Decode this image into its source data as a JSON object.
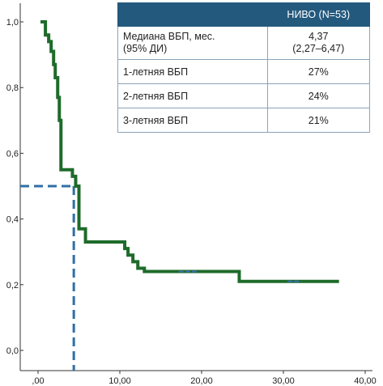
{
  "chart_data": {
    "type": "line",
    "title": "",
    "xlabel": "",
    "ylabel": "",
    "xlim": [
      0,
      40
    ],
    "ylim": [
      0,
      1.0
    ],
    "x_ticks": [
      ",00",
      "10,00",
      "20,00",
      "30,00",
      "40,00"
    ],
    "y_ticks": [
      "0,0",
      "0,2",
      "0,4",
      "0,6",
      "0,8",
      "1,0"
    ],
    "series": [
      {
        "name": "НИВО (N=53)",
        "color": "#1e6b2a",
        "step": true,
        "x": [
          0.3,
          0.9,
          1.3,
          1.6,
          1.9,
          2.1,
          2.4,
          2.6,
          2.8,
          3.4,
          4.2,
          4.6,
          5.0,
          5.8,
          10.6,
          11.0,
          11.6,
          12.2,
          13.0,
          24.6,
          36.8
        ],
        "y": [
          1.0,
          0.96,
          0.94,
          0.91,
          0.87,
          0.83,
          0.77,
          0.7,
          0.55,
          0.55,
          0.53,
          0.5,
          0.37,
          0.33,
          0.31,
          0.29,
          0.27,
          0.25,
          0.24,
          0.21,
          0.21
        ]
      }
    ],
    "censor_marks": [
      17.5,
      18.3,
      19.1,
      30.8,
      31.6
    ],
    "median_marker": {
      "x": 4.37,
      "y": 0.5,
      "color": "#2f6fa6"
    }
  },
  "table": {
    "header": [
      "",
      "НИВО (N=53)"
    ],
    "rows": [
      {
        "label_line1": "Медиана ВБП, мес.",
        "label_line2": "(95% ДИ)",
        "value_line1": "4,37",
        "value_line2": "(2,27–6,47)"
      },
      {
        "label_line1": "1-летняя ВБП",
        "value_line1": "27%"
      },
      {
        "label_line1": "2-летняя ВБП",
        "value_line1": "24%"
      },
      {
        "label_line1": "3-летняя ВБП",
        "value_line1": "21%"
      }
    ]
  }
}
